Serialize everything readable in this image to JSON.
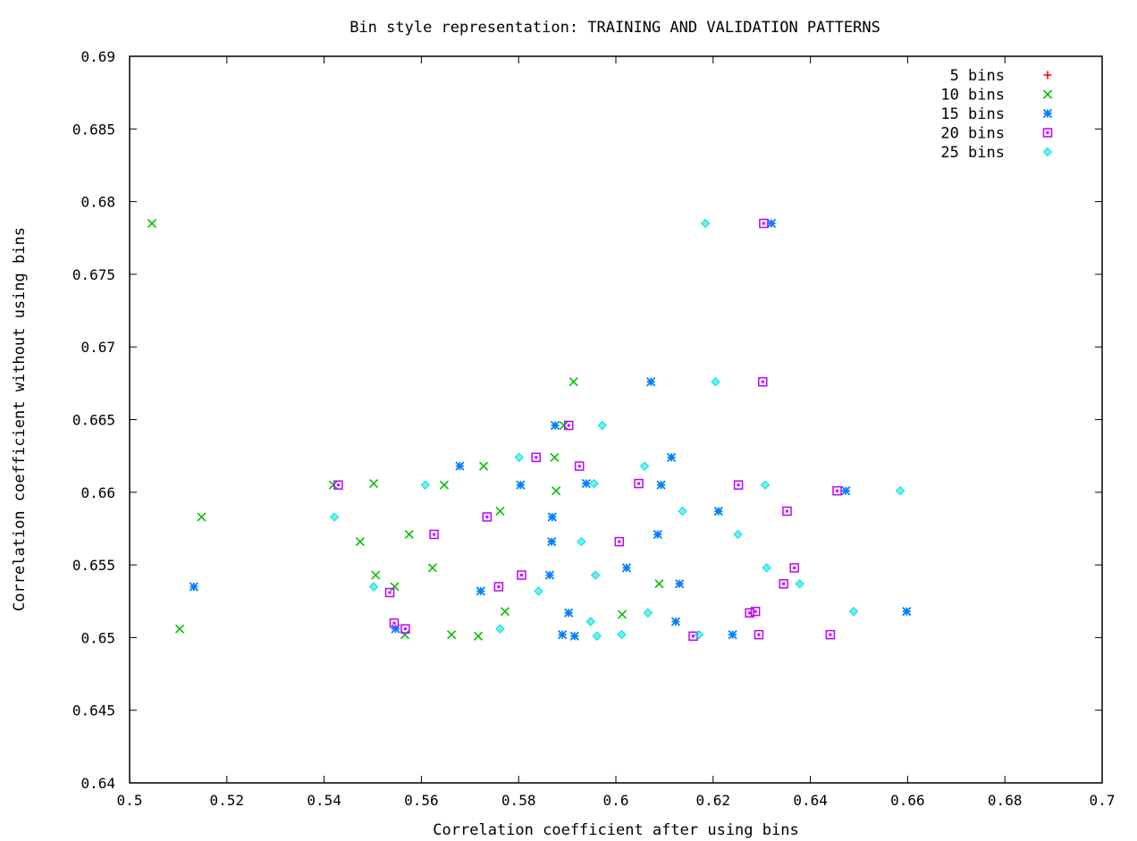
{
  "chart_data": {
    "type": "scatter",
    "title": "Bin style representation: TRAINING AND VALIDATION PATTERNS",
    "xlabel": "Correlation coefficient after using bins",
    "ylabel": "Correlation coefficient without using bins",
    "xlim": [
      0.5,
      0.7
    ],
    "ylim": [
      0.64,
      0.69
    ],
    "xticks": [
      "0.5",
      "0.52",
      "0.54",
      "0.56",
      "0.58",
      "0.6",
      "0.62",
      "0.64",
      "0.66",
      "0.68",
      "0.7"
    ],
    "yticks": [
      "0.64",
      "0.645",
      "0.65",
      "0.655",
      "0.66",
      "0.665",
      "0.67",
      "0.675",
      "0.68",
      "0.685",
      "0.69"
    ],
    "grid": false,
    "legend_position": "top-right",
    "series": [
      {
        "name": "5 bins",
        "marker": "plus",
        "color": "#ff0000",
        "points": []
      },
      {
        "name": "10 bins",
        "marker": "cross",
        "color": "#00c000",
        "points": [
          [
            0.5046,
            0.6785
          ],
          [
            0.5148,
            0.6583
          ],
          [
            0.5103,
            0.6506
          ],
          [
            0.5419,
            0.6605
          ],
          [
            0.5502,
            0.6606
          ],
          [
            0.5474,
            0.6566
          ],
          [
            0.5506,
            0.6543
          ],
          [
            0.5545,
            0.6535
          ],
          [
            0.5566,
            0.6502
          ],
          [
            0.5575,
            0.6571
          ],
          [
            0.5623,
            0.6548
          ],
          [
            0.5647,
            0.6605
          ],
          [
            0.5662,
            0.6502
          ],
          [
            0.5717,
            0.6501
          ],
          [
            0.5728,
            0.6618
          ],
          [
            0.5762,
            0.6587
          ],
          [
            0.5772,
            0.6518
          ],
          [
            0.5874,
            0.6624
          ],
          [
            0.5877,
            0.6601
          ],
          [
            0.5893,
            0.6646
          ],
          [
            0.5913,
            0.6676
          ],
          [
            0.6013,
            0.6516
          ],
          [
            0.6089,
            0.6537
          ]
        ]
      },
      {
        "name": "15 bins",
        "marker": "star",
        "color": "#0080ff",
        "points": [
          [
            0.5132,
            0.6535
          ],
          [
            0.5547,
            0.6506
          ],
          [
            0.5679,
            0.6618
          ],
          [
            0.5722,
            0.6532
          ],
          [
            0.5804,
            0.6605
          ],
          [
            0.5864,
            0.6543
          ],
          [
            0.5868,
            0.6566
          ],
          [
            0.5869,
            0.6583
          ],
          [
            0.5875,
            0.6646
          ],
          [
            0.589,
            0.6502
          ],
          [
            0.5903,
            0.6517
          ],
          [
            0.5915,
            0.6501
          ],
          [
            0.5939,
            0.6606
          ],
          [
            0.6022,
            0.6548
          ],
          [
            0.6072,
            0.6676
          ],
          [
            0.6086,
            0.6571
          ],
          [
            0.6093,
            0.6605
          ],
          [
            0.6114,
            0.6624
          ],
          [
            0.6123,
            0.6511
          ],
          [
            0.6131,
            0.6537
          ],
          [
            0.6211,
            0.6587
          ],
          [
            0.624,
            0.6502
          ],
          [
            0.632,
            0.6785
          ],
          [
            0.6473,
            0.6601
          ],
          [
            0.6598,
            0.6518
          ]
        ]
      },
      {
        "name": "20 bins",
        "marker": "square",
        "color": "#c000ff",
        "points": [
          [
            0.5429,
            0.6605
          ],
          [
            0.5535,
            0.6531
          ],
          [
            0.5544,
            0.651
          ],
          [
            0.5567,
            0.6506
          ],
          [
            0.5626,
            0.6571
          ],
          [
            0.5735,
            0.6583
          ],
          [
            0.5759,
            0.6535
          ],
          [
            0.5806,
            0.6543
          ],
          [
            0.5836,
            0.6624
          ],
          [
            0.5903,
            0.6646
          ],
          [
            0.5925,
            0.6618
          ],
          [
            0.6007,
            0.6566
          ],
          [
            0.6047,
            0.6606
          ],
          [
            0.6252,
            0.6605
          ],
          [
            0.6275,
            0.6517
          ],
          [
            0.6287,
            0.6518
          ],
          [
            0.6294,
            0.6502
          ],
          [
            0.6302,
            0.6676
          ],
          [
            0.6304,
            0.6785
          ],
          [
            0.6345,
            0.6537
          ],
          [
            0.6352,
            0.6587
          ],
          [
            0.6367,
            0.6548
          ],
          [
            0.6441,
            0.6502
          ],
          [
            0.6455,
            0.6601
          ],
          [
            0.6159,
            0.6501
          ]
        ]
      },
      {
        "name": "25 bins",
        "marker": "diamond",
        "color": "#00e0e0",
        "points": [
          [
            0.5421,
            0.6583
          ],
          [
            0.5502,
            0.6535
          ],
          [
            0.5608,
            0.6605
          ],
          [
            0.5762,
            0.6506
          ],
          [
            0.5801,
            0.6624
          ],
          [
            0.5841,
            0.6532
          ],
          [
            0.5929,
            0.6566
          ],
          [
            0.5948,
            0.6511
          ],
          [
            0.5955,
            0.6606
          ],
          [
            0.5958,
            0.6543
          ],
          [
            0.5961,
            0.6501
          ],
          [
            0.5972,
            0.6646
          ],
          [
            0.6012,
            0.6502
          ],
          [
            0.6059,
            0.6618
          ],
          [
            0.6066,
            0.6517
          ],
          [
            0.6137,
            0.6587
          ],
          [
            0.6171,
            0.6502
          ],
          [
            0.6184,
            0.6785
          ],
          [
            0.6205,
            0.6676
          ],
          [
            0.6251,
            0.6571
          ],
          [
            0.6307,
            0.6605
          ],
          [
            0.631,
            0.6548
          ],
          [
            0.6378,
            0.6537
          ],
          [
            0.6489,
            0.6518
          ],
          [
            0.6585,
            0.6601
          ]
        ]
      }
    ]
  }
}
